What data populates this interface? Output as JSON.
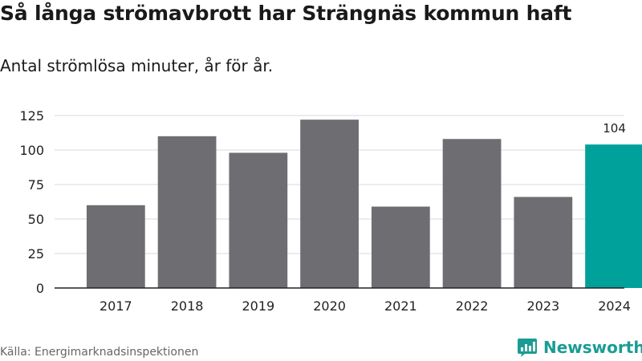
{
  "title": "Så långa strömavbrott har Strängnäs kommun haft",
  "subtitle": "Antal strömlösa minuter, år för år.",
  "source": "Källa: Energimarknadsinspektionen",
  "brand": {
    "name": "Newsworthy",
    "icon": "newsworthy-logo-icon",
    "color": "#1a9c94"
  },
  "colors": {
    "bar": "#6e6d72",
    "highlight": "#00a19a",
    "grid": "#d9d9d9",
    "axis": "#222222"
  },
  "chart_data": {
    "type": "bar",
    "title": "Så långa strömavbrott har Strängnäs kommun haft",
    "subtitle": "Antal strömlösa minuter, år för år.",
    "categories": [
      "2017",
      "2018",
      "2019",
      "2020",
      "2021",
      "2022",
      "2023",
      "2024"
    ],
    "values": [
      60,
      110,
      98,
      122,
      59,
      108,
      66,
      104
    ],
    "highlight_index": 7,
    "data_labels": [
      {
        "index": 7,
        "text": "104"
      }
    ],
    "ylim": [
      0,
      125
    ],
    "yticks": [
      0,
      25,
      50,
      75,
      100,
      125
    ],
    "grid": true,
    "legend": "none"
  }
}
